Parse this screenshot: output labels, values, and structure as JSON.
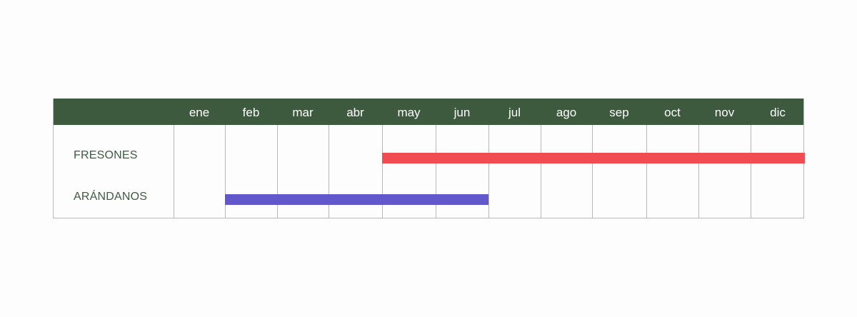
{
  "chart_data": {
    "type": "gantt",
    "months": [
      "ene",
      "feb",
      "mar",
      "abr",
      "may",
      "jun",
      "jul",
      "ago",
      "sep",
      "oct",
      "nov",
      "dic"
    ],
    "rows": [
      {
        "label": "FRESONES",
        "start_month": "may",
        "end_month": "dic",
        "color": "#f04c52"
      },
      {
        "label": "ARÁNDANOS",
        "start_month": "feb",
        "end_month": "jun",
        "color": "#6258cc"
      }
    ],
    "colors": {
      "header": "#3d5a3f",
      "label_text": "#3d5a3f",
      "grid": "#b8b8b8"
    }
  }
}
